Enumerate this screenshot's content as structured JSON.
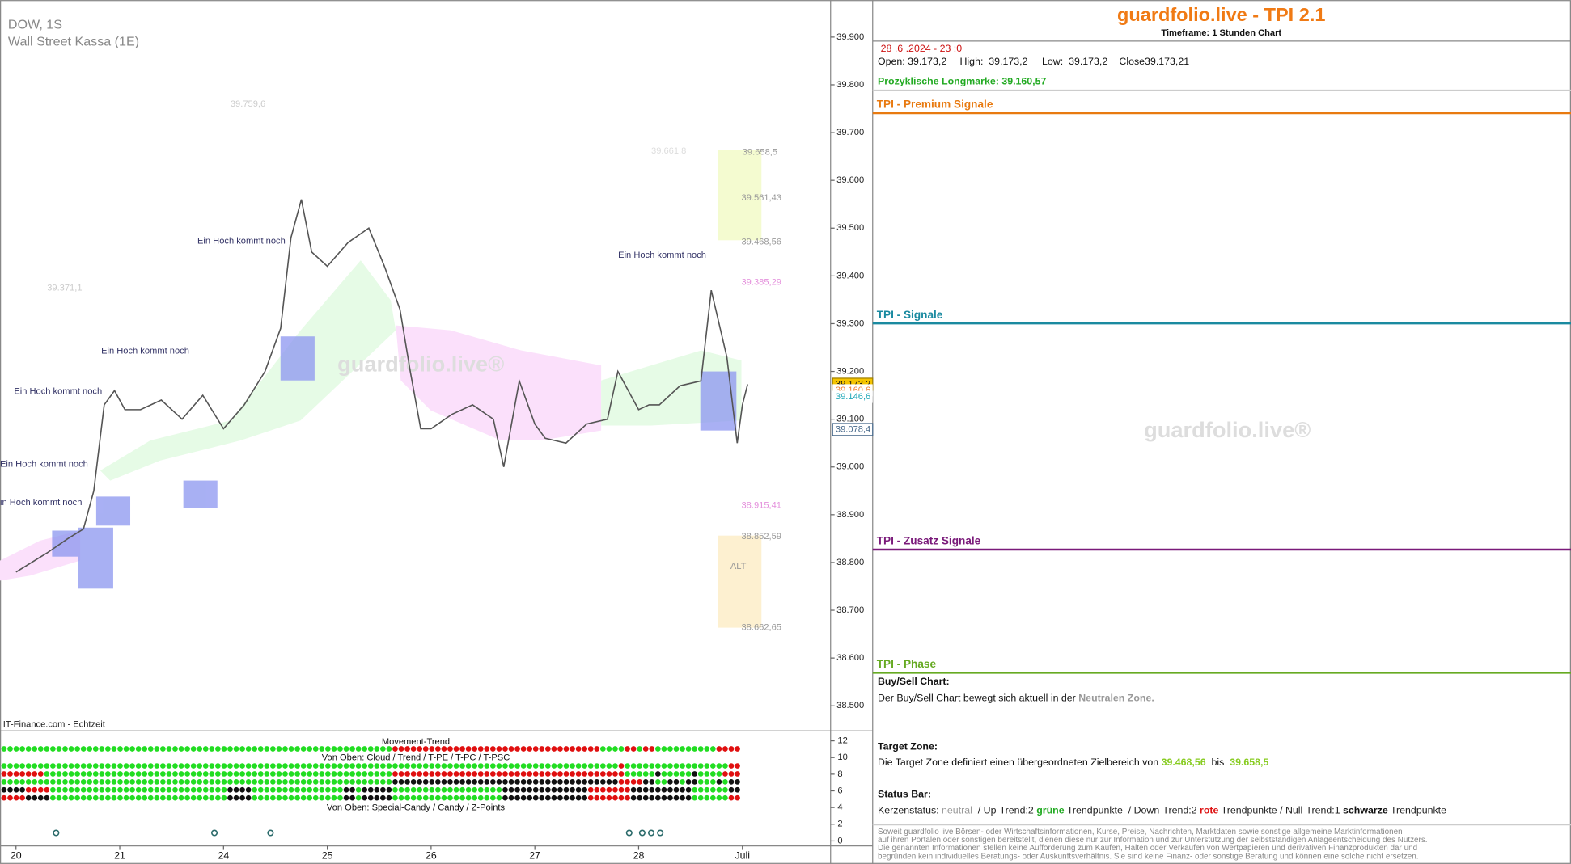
{
  "chart_data": {
    "type": "line",
    "title": "DOW, 1S",
    "subtitle": "Wall Street Kassa (1E)",
    "source": "IT-Finance.com - Echtzeit",
    "watermark": "guardfolio.live®",
    "color": "#555555",
    "x": [
      0,
      0.3,
      0.5,
      0.65,
      0.75,
      0.85,
      0.95,
      1.05,
      1.2,
      1.4,
      1.6,
      1.8,
      2.0,
      2.2,
      2.4,
      2.55,
      2.65,
      2.75,
      2.85,
      3.0,
      3.2,
      3.4,
      3.55,
      3.7,
      3.8,
      3.9,
      4.0,
      4.2,
      4.4,
      4.6,
      4.7,
      4.85,
      5.0,
      5.1,
      5.3,
      5.5,
      5.7,
      5.8,
      6.0,
      6.1,
      6.2,
      6.4,
      6.6,
      6.7,
      6.85,
      6.95,
      7.0,
      7.05
    ],
    "values": [
      38780,
      38820,
      38850,
      38870,
      38950,
      39130,
      39160,
      39120,
      39120,
      39140,
      39100,
      39150,
      39080,
      39130,
      39200,
      39290,
      39480,
      39560,
      39450,
      39420,
      39470,
      39500,
      39420,
      39330,
      39200,
      39080,
      39080,
      39110,
      39130,
      39100,
      39000,
      39180,
      39090,
      39060,
      39050,
      39090,
      39100,
      39200,
      39120,
      39130,
      39130,
      39170,
      39180,
      39370,
      39230,
      39050,
      39130,
      39173.2
    ],
    "xlim": [
      -0.154,
      7.84
    ],
    "xticks": [
      {
        "value": 0,
        "label": "20"
      },
      {
        "value": 1,
        "label": "21"
      },
      {
        "value": 2,
        "label": "24"
      },
      {
        "value": 3,
        "label": "25"
      },
      {
        "value": 4,
        "label": "26"
      },
      {
        "value": 5,
        "label": "27"
      },
      {
        "value": 6,
        "label": "28"
      },
      {
        "value": 7,
        "label": "Juli"
      }
    ],
    "ylim": [
      38447.6,
      39977.5
    ],
    "yticks": [
      {
        "value": 38500,
        "label": "38.500"
      },
      {
        "value": 38600,
        "label": "38.600"
      },
      {
        "value": 38700,
        "label": "38.700"
      },
      {
        "value": 38800,
        "label": "38.800"
      },
      {
        "value": 38900,
        "label": "38.900"
      },
      {
        "value": 39000,
        "label": "39.000"
      },
      {
        "value": 39100,
        "label": "39.100"
      },
      {
        "value": 39200,
        "label": "39.200"
      },
      {
        "value": 39300,
        "label": "39.300"
      },
      {
        "value": 39400,
        "label": "39.400"
      },
      {
        "value": 39500,
        "label": "39.500"
      },
      {
        "value": 39600,
        "label": "39.600"
      },
      {
        "value": 39700,
        "label": "39.700"
      },
      {
        "value": 39800,
        "label": "39.800"
      },
      {
        "value": 39900,
        "label": "39.900"
      }
    ],
    "price_tags": [
      {
        "value": 39173.2,
        "label": "39.173,2",
        "color": "#f5c400"
      },
      {
        "value": 39160.6,
        "label": "39.160,6",
        "color": "#f08030"
      },
      {
        "value": 39146.6,
        "label": "39.146,6",
        "color": "#20a8b8"
      },
      {
        "value": 39078.4,
        "label": "39.078,4",
        "color": "#446688"
      }
    ],
    "annotations": [
      {
        "text": "39.759,6",
        "color": "#cccccc"
      },
      {
        "text": "39.371,1",
        "color": "#cccccc"
      },
      {
        "text": "Ein Hoch kommt noch",
        "color": "#333366"
      },
      {
        "text": "Ein Hoch kommt noch",
        "color": "#333366"
      },
      {
        "text": "Ein Hoch kommt noch",
        "color": "#333366"
      },
      {
        "text": "Ein Hoch kommt noch",
        "color": "#333366"
      },
      {
        "text": "in Hoch kommt noch",
        "color": "#333366"
      },
      {
        "text": "Ein Hoch kommt noch",
        "color": "#333366"
      },
      {
        "text": "39.661,8",
        "color": "#dddddd"
      },
      {
        "text": "39.658,5",
        "color": "#999999"
      },
      {
        "text": "39.561,43",
        "color": "#999999"
      },
      {
        "text": "39.468,56",
        "color": "#999999"
      },
      {
        "text": "39.385,29",
        "color": "#e490dc"
      },
      {
        "text": "38.915,41",
        "color": "#e490dc"
      },
      {
        "text": "38.852,59",
        "color": "#999999"
      },
      {
        "text": "ALT",
        "color": "#999999"
      },
      {
        "text": "38.662,65",
        "color": "#999999"
      }
    ],
    "indicator": {
      "title_top": "Movement-Trend",
      "title_mid": "Von Oben: Cloud / Trend / T-PE / T-PC / T-PSC",
      "title_bottom": "Von Oben: Special-Candy / Candy / Z-Points",
      "ylim": [
        0,
        12
      ],
      "yticks": [
        12,
        10,
        8,
        6,
        4,
        2,
        0
      ],
      "colors": {
        "G": "#22dd22",
        "R": "#e01010",
        "K": "#111111"
      },
      "rows": [
        [
          [
            "G",
            64
          ],
          [
            "R",
            34
          ],
          [
            "G",
            4
          ],
          [
            "R",
            2
          ],
          [
            "G",
            1
          ],
          [
            "R",
            2
          ],
          [
            "G",
            10
          ],
          [
            "R",
            4
          ]
        ],
        [
          [
            "G",
            101
          ],
          [
            "R",
            1
          ],
          [
            "G",
            17
          ],
          [
            "R",
            2
          ]
        ],
        [
          [
            "R",
            7
          ],
          [
            "G",
            57
          ],
          [
            "R",
            38
          ],
          [
            "G",
            5
          ],
          [
            "K",
            1
          ],
          [
            "G",
            5
          ],
          [
            "K",
            1
          ],
          [
            "G",
            4
          ],
          [
            "R",
            3
          ]
        ],
        [
          [
            "G",
            64
          ],
          [
            "K",
            37
          ],
          [
            "R",
            4
          ],
          [
            "K",
            2
          ],
          [
            "G",
            2
          ],
          [
            "K",
            2
          ],
          [
            "G",
            1
          ],
          [
            "K",
            2
          ],
          [
            "G",
            3
          ],
          [
            "K",
            1
          ],
          [
            "G",
            1
          ],
          [
            "K",
            2
          ]
        ],
        [
          [
            "K",
            4
          ],
          [
            "R",
            4
          ],
          [
            "G",
            29
          ],
          [
            "K",
            4
          ],
          [
            "G",
            15
          ],
          [
            "K",
            2
          ],
          [
            "G",
            1
          ],
          [
            "K",
            5
          ],
          [
            "G",
            18
          ],
          [
            "K",
            14
          ],
          [
            "R",
            7
          ],
          [
            "K",
            10
          ],
          [
            "G",
            6
          ],
          [
            "K",
            2
          ]
        ],
        [
          [
            "R",
            4
          ],
          [
            "K",
            4
          ],
          [
            "G",
            29
          ],
          [
            "K",
            4
          ],
          [
            "G",
            15
          ],
          [
            "K",
            2
          ],
          [
            "G",
            1
          ],
          [
            "K",
            5
          ],
          [
            "G",
            18
          ],
          [
            "K",
            14
          ],
          [
            "R",
            7
          ],
          [
            "K",
            10
          ],
          [
            "G",
            6
          ],
          [
            "R",
            2
          ]
        ]
      ]
    }
  },
  "panel": {
    "title": "guardfolio.live - TPI 2.1",
    "timeframe": "Timeframe: 1 Stunden Chart",
    "datetime": "28 .6 .2024 - 23 :0",
    "ohlc": [
      "Open: 39.173,2",
      "High:  39.173,2",
      "Low:  39.173,2",
      "Close39.173,21"
    ],
    "longmark_label": "Prozyklische Longmarke: ",
    "longmark_value": "39.160,57",
    "sections": [
      {
        "title": "TPI - Premium Signale",
        "color": "#e87a10"
      },
      {
        "title": "TPI - Signale",
        "color": "#1a8aa0"
      },
      {
        "title": "TPI - Zusatz Signale",
        "color": "#7a1a7a"
      },
      {
        "title": "TPI - Phase",
        "color": "#66aa22"
      }
    ],
    "watermark": "guardfolio.live®",
    "buysell": {
      "heading": "Buy/Sell Chart:",
      "text": "Der Buy/Sell Chart bewegt sich aktuell in der ",
      "zone": "Neutralen Zone."
    },
    "target": {
      "heading": "Target Zone:",
      "text": "Die Target Zone definiert einen übergeordneten Zielbereich von ",
      "from": "39.468,56",
      "mid": "  bis  ",
      "to": "39.658,5"
    },
    "status": {
      "heading": "Status Bar:",
      "parts": [
        {
          "text": "Kerzenstatus: ",
          "color": "#222222",
          "bold": false
        },
        {
          "text": "neutral",
          "color": "#999999",
          "bold": false
        },
        {
          "text": "  / Up-Trend:2 ",
          "color": "#222222",
          "bold": false
        },
        {
          "text": "grüne",
          "color": "#22aa22",
          "bold": true
        },
        {
          "text": " Trendpunkte  / Down-Trend:2 ",
          "color": "#222222",
          "bold": false
        },
        {
          "text": "rote",
          "color": "#dd1111",
          "bold": true
        },
        {
          "text": " Trendpunkte / Null-Trend:1 ",
          "color": "#222222",
          "bold": false
        },
        {
          "text": "schwarze",
          "color": "#111111",
          "bold": true
        },
        {
          "text": " Trendpunkte",
          "color": "#222222",
          "bold": false
        }
      ]
    },
    "disclaimer": [
      "Soweit guardfolio live Börsen- oder Wirtschaftsinformationen, Kurse, Preise, Nachrichten, Marktdaten sowie sonstige allgemeine Marktinformationen",
      "auf ihren Portalen oder sonstigen bereitstellt, dienen diese nur zur Information und zur Unterstützung der selbstständigen Anlageentscheidung des Nutzers.",
      "Die genannten Informationen stellen keine Aufforderung zum Kaufen, Halten oder Verkaufen von Wertpapieren und derivativen Finanzprodukten dar und",
      "begründen kein individuelles Beratungs- oder Auskunftsverhältnis. Sie sind keine Finanz- oder sonstige Beratung und können eine solche nicht ersetzen."
    ]
  }
}
